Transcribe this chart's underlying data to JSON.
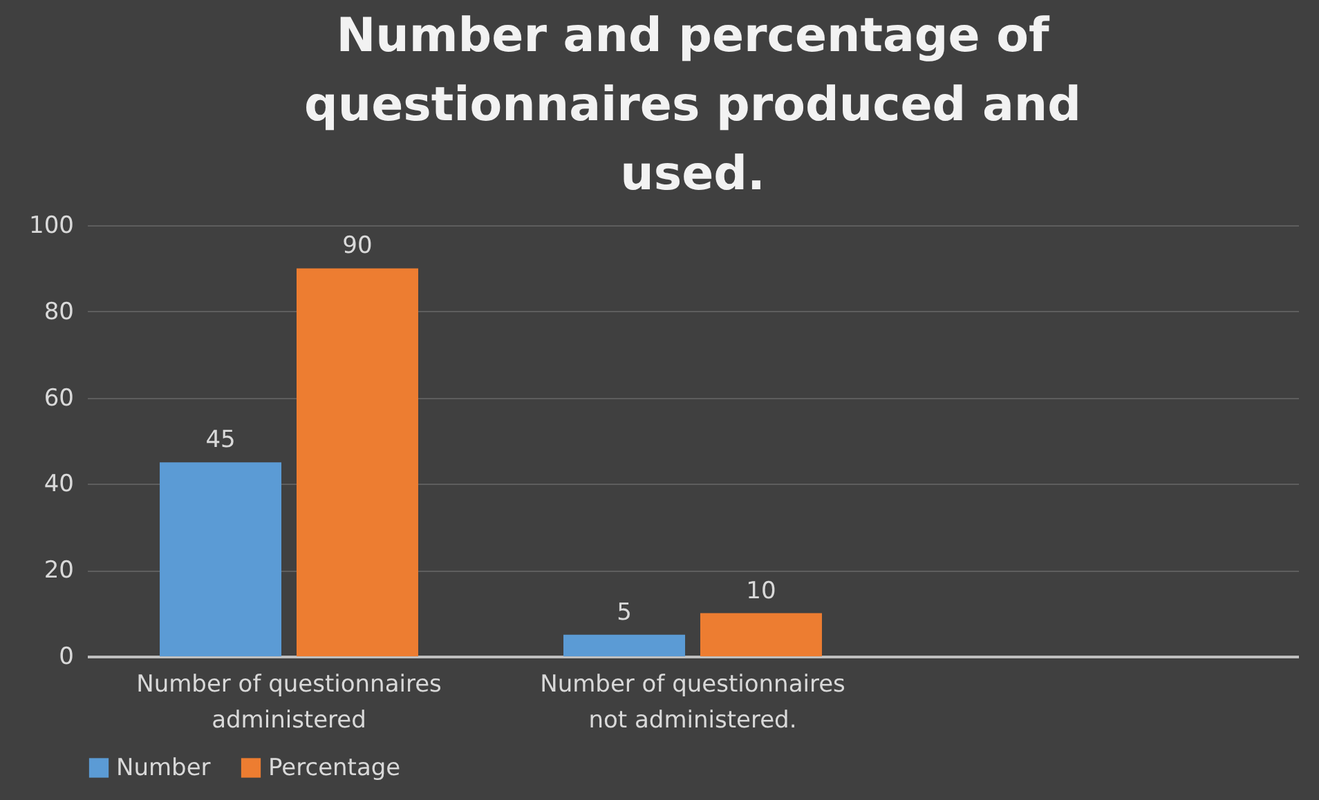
{
  "chart_data": {
    "type": "bar",
    "title": "Number and percentage of questionnaires produced and used.",
    "categories": [
      "Number of questionnaires administered",
      "Number of questionnaires not administered.",
      null
    ],
    "series": [
      {
        "name": "Number",
        "color": "#5b9bd5",
        "values": [
          45,
          5,
          null
        ]
      },
      {
        "name": "Percentage",
        "color": "#ed7d31",
        "values": [
          90,
          10,
          null
        ]
      }
    ],
    "ylim": [
      0,
      100
    ],
    "yticks": [
      0,
      20,
      40,
      60,
      80,
      100
    ],
    "grid": "y",
    "legend": "bottom",
    "data_labels": true
  }
}
